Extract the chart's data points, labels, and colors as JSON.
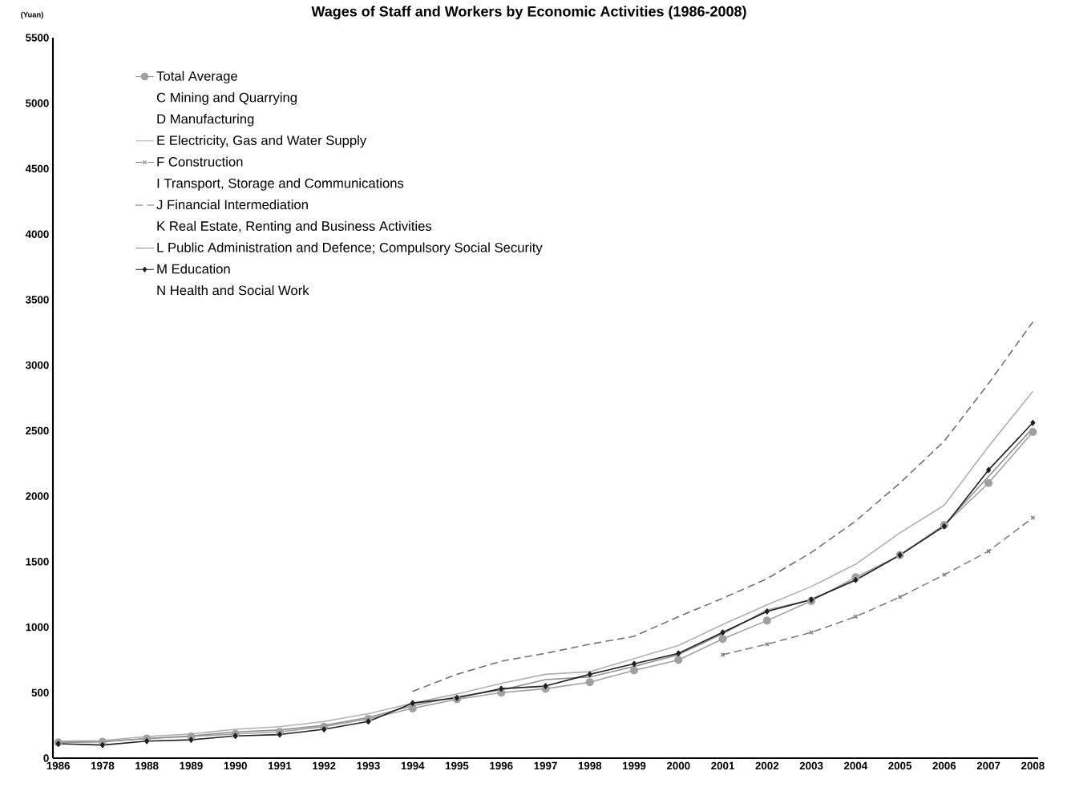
{
  "chart_data": {
    "type": "line",
    "title": "Wages of Staff and Workers by Economic Activities (1986-2008)",
    "ylabel": "(Yuan)",
    "categories": [
      "1986",
      "1978",
      "1988",
      "1989",
      "1990",
      "1991",
      "1992",
      "1993",
      "1994",
      "1995",
      "1996",
      "1997",
      "1998",
      "1999",
      "2000",
      "2001",
      "2002",
      "2003",
      "2004",
      "2005",
      "2006",
      "2007",
      "2008"
    ],
    "ylim": [
      0,
      5500
    ],
    "yticks": [
      0,
      500,
      1000,
      1500,
      2000,
      2500,
      3000,
      3500,
      4000,
      4500,
      5000,
      5500
    ],
    "grid": false,
    "legend": "top left",
    "series": [
      {
        "name": "Total Average",
        "color": "#a0a0a0",
        "marker": "circle",
        "line_style": "solid",
        "values": [
          120,
          125,
          150,
          165,
          185,
          200,
          240,
          300,
          380,
          450,
          500,
          530,
          580,
          670,
          750,
          910,
          1050,
          1200,
          1380,
          1550,
          1780,
          2100,
          2490
        ]
      },
      {
        "name": "C Mining and Quarrying",
        "values": [
          null,
          null,
          null,
          null,
          null,
          null,
          null,
          null,
          null,
          null,
          null,
          null,
          null,
          null,
          null,
          null,
          null,
          null,
          null,
          null,
          null,
          null,
          null
        ]
      },
      {
        "name": "D Manufacturing",
        "values": [
          null,
          null,
          null,
          null,
          null,
          null,
          null,
          null,
          null,
          null,
          null,
          null,
          null,
          null,
          null,
          null,
          null,
          null,
          null,
          null,
          null,
          null,
          null
        ]
      },
      {
        "name": "E Electricity, Gas and Water Supply",
        "color": "#b0b0b0",
        "marker": "none",
        "line_style": "solid",
        "values": [
          130,
          135,
          165,
          185,
          220,
          240,
          280,
          340,
          420,
          490,
          570,
          640,
          660,
          760,
          860,
          1020,
          1170,
          1310,
          1480,
          1720,
          1930,
          2380,
          2800
        ]
      },
      {
        "name": "F Construction",
        "color": "#808080",
        "marker": "cross",
        "line_style": "dashed",
        "values": [
          null,
          null,
          null,
          null,
          null,
          null,
          null,
          null,
          null,
          null,
          null,
          null,
          null,
          null,
          null,
          790,
          870,
          960,
          1080,
          1230,
          1400,
          1580,
          1835
        ]
      },
      {
        "name": "I Transport, Storage and Communications",
        "values": [
          null,
          null,
          null,
          null,
          null,
          null,
          null,
          null,
          null,
          null,
          null,
          null,
          null,
          null,
          null,
          null,
          null,
          null,
          null,
          null,
          null,
          null,
          null
        ]
      },
      {
        "name": "J Financial Intermediation",
        "color": "#707070",
        "marker": "none",
        "line_style": "dashed",
        "values": [
          null,
          null,
          null,
          null,
          null,
          null,
          null,
          null,
          510,
          640,
          740,
          800,
          870,
          930,
          1080,
          1220,
          1370,
          1570,
          1810,
          2100,
          2420,
          2860,
          3330
        ]
      },
      {
        "name": "K Real Estate, Renting and Business Activities",
        "values": [
          null,
          null,
          null,
          null,
          null,
          null,
          null,
          null,
          null,
          null,
          null,
          null,
          null,
          null,
          null,
          null,
          null,
          null,
          null,
          null,
          null,
          null,
          null
        ]
      },
      {
        "name": "L Public Administration and Defence; Compulsory Social Security",
        "color": "#909090",
        "marker": "none",
        "line_style": "solid",
        "values": [
          120,
          125,
          150,
          170,
          200,
          215,
          250,
          310,
          400,
          470,
          520,
          600,
          620,
          700,
          790,
          950,
          1130,
          1210,
          1360,
          1550,
          1780,
          2150,
          2520
        ]
      },
      {
        "name": "M Education",
        "color": "#202020",
        "marker": "diamond",
        "line_style": "solid",
        "values": [
          110,
          100,
          130,
          140,
          170,
          180,
          220,
          280,
          420,
          460,
          530,
          550,
          640,
          720,
          800,
          960,
          1120,
          1210,
          1360,
          1550,
          1770,
          2200,
          2560
        ]
      },
      {
        "name": "N Health and Social Work",
        "values": [
          null,
          null,
          null,
          null,
          null,
          null,
          null,
          null,
          null,
          null,
          null,
          null,
          null,
          null,
          null,
          null,
          null,
          null,
          null,
          null,
          null,
          null,
          null
        ]
      }
    ]
  }
}
